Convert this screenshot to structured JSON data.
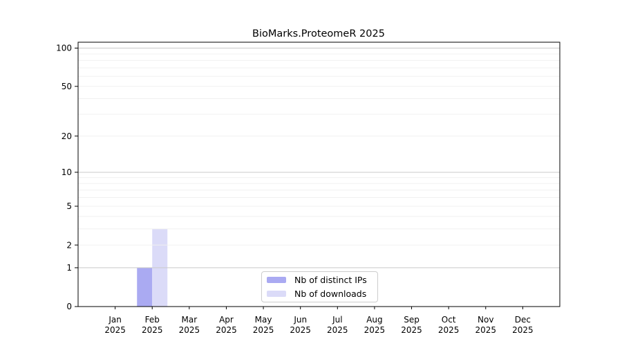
{
  "chart_data": {
    "type": "bar",
    "title": "BioMarks.ProteomeR 2025",
    "categories": [
      {
        "month": "Jan",
        "year": "2025"
      },
      {
        "month": "Feb",
        "year": "2025"
      },
      {
        "month": "Mar",
        "year": "2025"
      },
      {
        "month": "Apr",
        "year": "2025"
      },
      {
        "month": "May",
        "year": "2025"
      },
      {
        "month": "Jun",
        "year": "2025"
      },
      {
        "month": "Jul",
        "year": "2025"
      },
      {
        "month": "Aug",
        "year": "2025"
      },
      {
        "month": "Sep",
        "year": "2025"
      },
      {
        "month": "Oct",
        "year": "2025"
      },
      {
        "month": "Nov",
        "year": "2025"
      },
      {
        "month": "Dec",
        "year": "2025"
      }
    ],
    "series": [
      {
        "name": "Nb of distinct IPs",
        "color": "#aaaaf2",
        "values": [
          0,
          1,
          0,
          0,
          0,
          0,
          0,
          0,
          0,
          0,
          0,
          0
        ]
      },
      {
        "name": "Nb of downloads",
        "color": "#dbdbf8",
        "values": [
          0,
          3,
          0,
          0,
          0,
          0,
          0,
          0,
          0,
          0,
          0,
          0
        ]
      }
    ],
    "xlabel": "",
    "ylabel": "",
    "y_scale": "log1p",
    "ylim": [
      0,
      112
    ],
    "y_ticks": [
      0,
      1,
      2,
      5,
      10,
      20,
      50,
      100
    ],
    "grid": {
      "on": true,
      "major_values": [
        1,
        10,
        100
      ],
      "minor_values": [
        2,
        3,
        4,
        5,
        6,
        7,
        8,
        9,
        20,
        30,
        40,
        50,
        60,
        70,
        80,
        90
      ]
    },
    "legend_position": "inside-bottom-center"
  },
  "colors": {
    "background": "#ffffff",
    "spine": "#000000",
    "grid_major": "#c9c9c9",
    "grid_minor": "#f0f0f0",
    "tick_text": "#000000"
  }
}
